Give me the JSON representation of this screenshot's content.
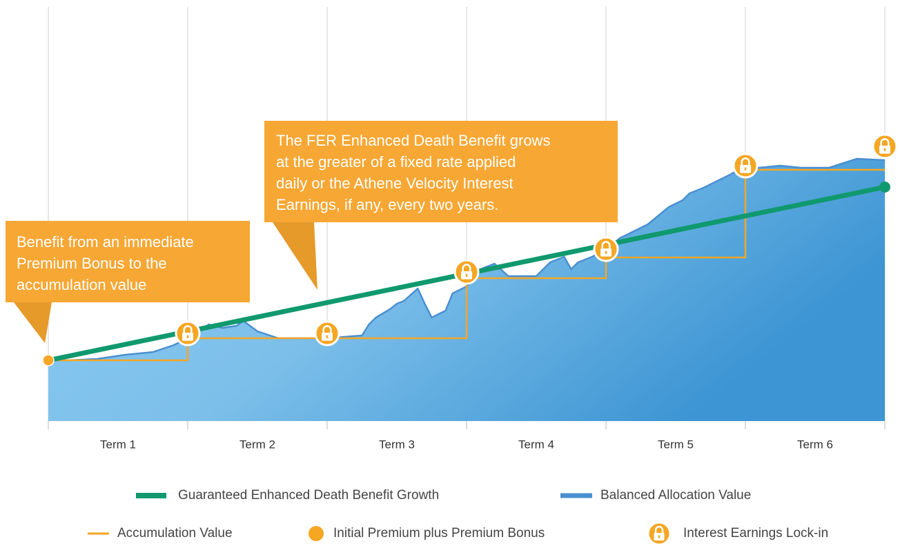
{
  "chart_data": {
    "type": "area",
    "categories": [
      "Term 1",
      "Term 2",
      "Term 3",
      "Term 4",
      "Term 5",
      "Term 6"
    ],
    "xlim": [
      0,
      120
    ],
    "xticks": [
      0,
      20,
      40,
      60,
      80,
      100,
      120
    ],
    "ylim": [
      0,
      600
    ],
    "annotations": [
      {
        "lines": [
          "Benefit from an immediate",
          "Premium Bonus to the",
          "accumulation value"
        ]
      },
      {
        "lines": [
          "The FER Enhanced Death Benefit grows",
          "at the greater of a fixed rate applied",
          "daily or the Athene Velocity Interest",
          "Earnings, if any, every two years."
        ]
      }
    ],
    "series": [
      {
        "name": "Guaranteed Enhanced Death Benefit Growth",
        "type": "line",
        "color": "#10996e",
        "x": [
          0,
          120
        ],
        "values": [
          88,
          339
        ]
      },
      {
        "name": "Balanced Allocation Value",
        "type": "area",
        "color": "#4a8fd0",
        "x": [
          0,
          3,
          7,
          11,
          15,
          18,
          20,
          22,
          23,
          25,
          27,
          28,
          30,
          33,
          40,
          45,
          46,
          47,
          49,
          50,
          51,
          53,
          54,
          55,
          57,
          58,
          60,
          62,
          64,
          66,
          70,
          72,
          74,
          75,
          76,
          78,
          80,
          82,
          86,
          89,
          91,
          92,
          94,
          96,
          98,
          100,
          102,
          105,
          108,
          112,
          116,
          120
        ],
        "values": [
          88,
          88,
          90,
          96,
          100,
          110,
          120,
          132,
          140,
          135,
          138,
          145,
          130,
          120,
          120,
          124,
          140,
          150,
          162,
          170,
          174,
          192,
          170,
          150,
          160,
          185,
          195,
          220,
          228,
          210,
          210,
          230,
          238,
          220,
          230,
          238,
          248,
          265,
          285,
          310,
          320,
          330,
          338,
          348,
          358,
          370,
          367,
          370,
          367,
          367,
          380,
          378
        ]
      },
      {
        "name": "Accumulation Value",
        "type": "step",
        "color": "#f5a623",
        "x": [
          0,
          20,
          20,
          40,
          60,
          60,
          80,
          80,
          100,
          100,
          120
        ],
        "values": [
          88,
          88,
          120,
          120,
          120,
          207,
          207,
          237,
          237,
          364,
          364
        ]
      },
      {
        "name": "Initial Premium plus Premium Bonus",
        "type": "point",
        "color": "#f5a623",
        "x": [
          0
        ],
        "values": [
          88
        ]
      },
      {
        "name": "Interest Earnings Lock-in",
        "type": "lock",
        "color": "#f5a623",
        "x": [
          20,
          40,
          60,
          80,
          100,
          120
        ],
        "values": [
          127,
          127,
          216,
          249,
          370,
          398
        ]
      }
    ]
  }
}
